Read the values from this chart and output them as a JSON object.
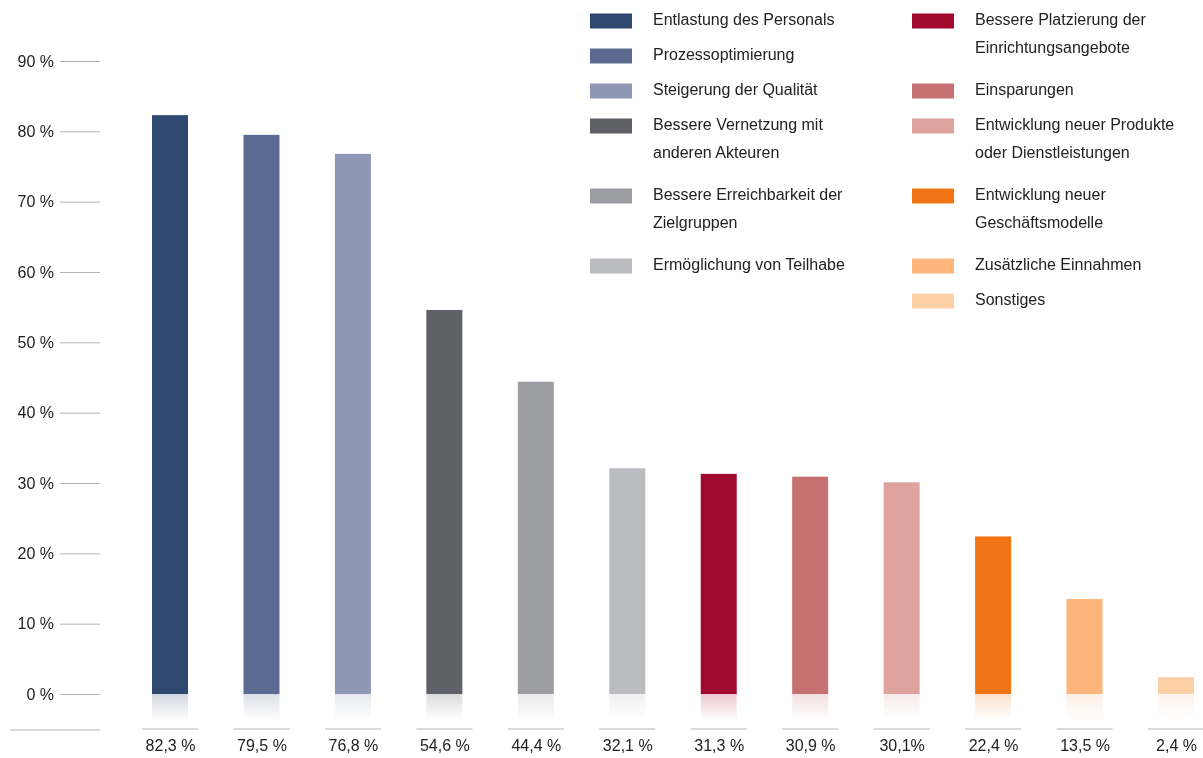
{
  "chart_data": {
    "type": "bar",
    "categories": [
      "82,3 %",
      "79,5 %",
      "76,8 %",
      "54,6 %",
      "44,4 %",
      "32,1 %",
      "31,3 %",
      "30,9 %",
      "30,1%",
      "22,4 %",
      "13,5 %",
      "2,4 %"
    ],
    "series": [
      {
        "name": "Entlastung des Personals",
        "color": "#2f4870",
        "values": [
          82.3,
          null,
          null,
          null,
          null,
          null,
          null,
          null,
          null,
          null,
          null,
          null
        ]
      },
      {
        "name": "Prozessoptimierung",
        "color": "#5a6a91",
        "values": [
          null,
          79.5,
          null,
          null,
          null,
          null,
          null,
          null,
          null,
          null,
          null,
          null
        ]
      },
      {
        "name": "Steigerung der Qualität",
        "color": "#8e98b6",
        "values": [
          null,
          null,
          76.8,
          null,
          null,
          null,
          null,
          null,
          null,
          null,
          null,
          null
        ]
      },
      {
        "name": "Bessere Vernetzung mit anderen Akteuren",
        "color": "#606168",
        "values": [
          null,
          null,
          null,
          54.6,
          null,
          null,
          null,
          null,
          null,
          null,
          null,
          null
        ]
      },
      {
        "name": "Bessere Erreichbarkeit der Zielgruppen",
        "color": "#9c9da2",
        "values": [
          null,
          null,
          null,
          null,
          44.4,
          null,
          null,
          null,
          null,
          null,
          null,
          null
        ]
      },
      {
        "name": "Ermöglichung von Teilhabe",
        "color": "#bbbcc0",
        "values": [
          null,
          null,
          null,
          null,
          null,
          32.1,
          null,
          null,
          null,
          null,
          null,
          null
        ]
      },
      {
        "name": "Bessere Platzierung der Einrichtungsangebote",
        "color": "#a00a2e",
        "values": [
          null,
          null,
          null,
          null,
          null,
          null,
          31.3,
          null,
          null,
          null,
          null,
          null
        ]
      },
      {
        "name": "Einsparungen",
        "color": "#c67171",
        "values": [
          null,
          null,
          null,
          null,
          null,
          null,
          null,
          30.9,
          null,
          null,
          null,
          null
        ]
      },
      {
        "name": "Entwicklung neuer Produkte oder Dienstleistungen",
        "color": "#dea39f",
        "values": [
          null,
          null,
          null,
          null,
          null,
          null,
          null,
          null,
          30.1,
          null,
          null,
          null
        ]
      },
      {
        "name": "Entwicklung neuer Geschäftsmodelle",
        "color": "#f07414",
        "values": [
          null,
          null,
          null,
          null,
          null,
          null,
          null,
          null,
          null,
          22.4,
          null,
          null
        ]
      },
      {
        "name": "Zusätzliche Einnahmen",
        "color": "#fdb57c",
        "values": [
          null,
          null,
          null,
          null,
          null,
          null,
          null,
          null,
          null,
          null,
          13.5,
          null
        ]
      },
      {
        "name": "Sonstiges",
        "color": "#fdd0a6",
        "values": [
          null,
          null,
          null,
          null,
          null,
          null,
          null,
          null,
          null,
          null,
          null,
          2.4
        ]
      }
    ],
    "ylim": [
      0,
      90
    ],
    "yticks": [
      {
        "value": 0,
        "label": "0 %"
      },
      {
        "value": 10,
        "label": "10 %"
      },
      {
        "value": 20,
        "label": "20 %"
      },
      {
        "value": 30,
        "label": "30 %"
      },
      {
        "value": 40,
        "label": "40 %"
      },
      {
        "value": 50,
        "label": "50 %"
      },
      {
        "value": 60,
        "label": "60 %"
      },
      {
        "value": 70,
        "label": "70 %"
      },
      {
        "value": 80,
        "label": "80 %"
      },
      {
        "value": 90,
        "label": "90 %"
      }
    ],
    "legend": "top right"
  }
}
